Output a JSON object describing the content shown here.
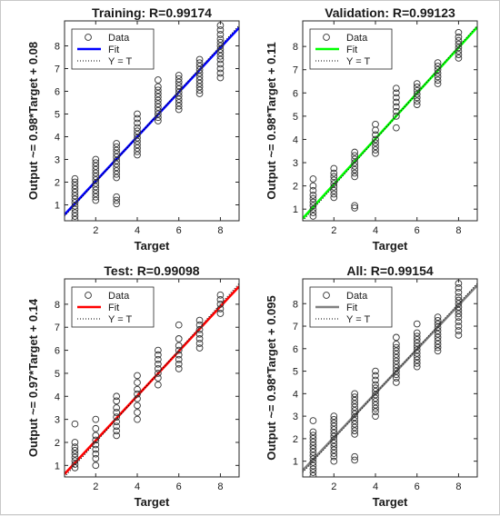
{
  "figure": {
    "background": "#ffffff",
    "window_background": "#f0f0f0"
  },
  "chart_data": [
    {
      "type": "scatter",
      "title": "Training: R=0.99174",
      "xlabel": "Target",
      "ylabel": "Output ~= 0.98*Target + 0.08",
      "xlim": [
        0.5,
        8.9
      ],
      "ylim": [
        0.3,
        9.1
      ],
      "xticks": [
        2,
        4,
        6,
        8
      ],
      "yticks": [
        1,
        2,
        3,
        4,
        5,
        6,
        7,
        8
      ],
      "legend": {
        "placement": "top-left",
        "entries": [
          "Data",
          "Fit",
          "Y = T"
        ]
      },
      "fit": {
        "slope": 0.98,
        "intercept": 0.08,
        "color": "#0000ff"
      },
      "identity_line": true,
      "points": [
        {
          "x": 1,
          "y": [
            0.35,
            0.5,
            0.65,
            0.8,
            0.95,
            1.1,
            1.25,
            1.4,
            1.55,
            1.7,
            1.85,
            2.0,
            2.15
          ]
        },
        {
          "x": 2,
          "y": [
            1.2,
            1.35,
            1.5,
            1.65,
            1.8,
            1.95,
            2.1,
            2.25,
            2.4,
            2.55,
            2.7,
            2.85,
            3.0
          ]
        },
        {
          "x": 3,
          "y": [
            1.05,
            1.2,
            1.35,
            2.2,
            2.35,
            2.5,
            2.65,
            2.8,
            2.95,
            3.1,
            3.25,
            3.4,
            3.55,
            3.7
          ]
        },
        {
          "x": 4,
          "y": [
            3.2,
            3.35,
            3.5,
            3.65,
            3.8,
            3.95,
            4.1,
            4.25,
            4.4,
            4.6,
            4.8,
            5.0
          ]
        },
        {
          "x": 5,
          "y": [
            4.7,
            4.85,
            5.0,
            5.15,
            5.3,
            5.45,
            5.6,
            5.75,
            5.9,
            6.05,
            6.2,
            6.5
          ]
        },
        {
          "x": 6,
          "y": [
            5.2,
            5.35,
            5.5,
            5.65,
            5.8,
            5.95,
            6.1,
            6.25,
            6.4,
            6.55,
            6.7
          ]
        },
        {
          "x": 7,
          "y": [
            5.9,
            6.05,
            6.2,
            6.35,
            6.5,
            6.65,
            6.8,
            6.95,
            7.1,
            7.25,
            7.4
          ]
        },
        {
          "x": 8,
          "y": [
            6.6,
            6.8,
            7.0,
            7.2,
            7.4,
            7.55,
            7.7,
            7.85,
            8.0,
            8.15,
            8.3,
            8.5,
            8.7,
            8.9
          ]
        }
      ]
    },
    {
      "type": "scatter",
      "title": "Validation: R=0.99123",
      "xlabel": "Target",
      "ylabel": "Output ~= 0.98*Target + 0.11",
      "xlim": [
        0.5,
        8.9
      ],
      "ylim": [
        0.5,
        9.1
      ],
      "xticks": [
        2,
        4,
        6,
        8
      ],
      "yticks": [
        1,
        2,
        3,
        4,
        5,
        6,
        7,
        8
      ],
      "legend": {
        "placement": "top-left",
        "entries": [
          "Data",
          "Fit",
          "Y = T"
        ]
      },
      "fit": {
        "slope": 0.98,
        "intercept": 0.11,
        "color": "#00ff00"
      },
      "identity_line": true,
      "points": [
        {
          "x": 1,
          "y": [
            0.7,
            0.85,
            1.0,
            1.15,
            1.3,
            1.45,
            1.6,
            1.8,
            2.0,
            2.3
          ]
        },
        {
          "x": 2,
          "y": [
            1.5,
            1.65,
            1.8,
            1.95,
            2.1,
            2.25,
            2.4,
            2.55,
            2.75
          ]
        },
        {
          "x": 3,
          "y": [
            1.05,
            1.15,
            2.4,
            2.55,
            2.7,
            2.85,
            3.0,
            3.15,
            3.3,
            3.45
          ]
        },
        {
          "x": 4,
          "y": [
            3.4,
            3.55,
            3.7,
            3.85,
            4.0,
            4.2,
            4.4,
            4.65
          ]
        },
        {
          "x": 5,
          "y": [
            4.5,
            5.0,
            5.2,
            5.4,
            5.6,
            5.8,
            6.0,
            6.2
          ]
        },
        {
          "x": 6,
          "y": [
            5.5,
            5.65,
            5.8,
            5.95,
            6.1,
            6.25,
            6.4
          ]
        },
        {
          "x": 7,
          "y": [
            6.4,
            6.55,
            6.7,
            6.85,
            7.0,
            7.15,
            7.3
          ]
        },
        {
          "x": 8,
          "y": [
            7.5,
            7.65,
            7.8,
            7.95,
            8.1,
            8.25,
            8.4,
            8.6
          ]
        }
      ]
    },
    {
      "type": "scatter",
      "title": "Test: R=0.99098",
      "xlabel": "Target",
      "ylabel": "Output ~= 0.97*Target + 0.14",
      "xlim": [
        0.5,
        8.9
      ],
      "ylim": [
        0.5,
        9.1
      ],
      "xticks": [
        2,
        4,
        6,
        8
      ],
      "yticks": [
        1,
        2,
        3,
        4,
        5,
        6,
        7,
        8
      ],
      "legend": {
        "placement": "top-left",
        "entries": [
          "Data",
          "Fit",
          "Y = T"
        ]
      },
      "fit": {
        "slope": 0.97,
        "intercept": 0.14,
        "color": "#ff0000"
      },
      "identity_line": true,
      "points": [
        {
          "x": 1,
          "y": [
            0.9,
            1.05,
            1.2,
            1.35,
            1.5,
            1.65,
            1.8,
            2.0,
            2.8
          ]
        },
        {
          "x": 2,
          "y": [
            1.0,
            1.3,
            1.5,
            1.7,
            1.9,
            2.1,
            2.3,
            2.6,
            3.0
          ]
        },
        {
          "x": 3,
          "y": [
            2.3,
            2.5,
            2.7,
            2.9,
            3.1,
            3.3,
            3.5,
            3.8,
            4.0
          ]
        },
        {
          "x": 4,
          "y": [
            3.0,
            3.3,
            3.6,
            3.9,
            4.1,
            4.3,
            4.6,
            4.9
          ]
        },
        {
          "x": 5,
          "y": [
            4.5,
            4.8,
            5.0,
            5.2,
            5.4,
            5.6,
            5.8,
            6.0
          ]
        },
        {
          "x": 6,
          "y": [
            5.2,
            5.4,
            5.6,
            5.8,
            6.0,
            6.2,
            6.5,
            7.1
          ]
        },
        {
          "x": 7,
          "y": [
            6.1,
            6.3,
            6.5,
            6.7,
            6.9,
            7.1,
            7.3
          ]
        },
        {
          "x": 8,
          "y": [
            7.6,
            7.8,
            8.0,
            8.2,
            8.4
          ]
        }
      ]
    },
    {
      "type": "scatter",
      "title": "All: R=0.99154",
      "xlabel": "Target",
      "ylabel": "Output ~= 0.98*Target + 0.095",
      "xlim": [
        0.5,
        8.9
      ],
      "ylim": [
        0.3,
        9.1
      ],
      "xticks": [
        2,
        4,
        6,
        8
      ],
      "yticks": [
        1,
        2,
        3,
        4,
        5,
        6,
        7,
        8
      ],
      "legend": {
        "placement": "top-left",
        "entries": [
          "Data",
          "Fit",
          "Y = T"
        ]
      },
      "fit": {
        "slope": 0.98,
        "intercept": 0.095,
        "color": "#808080"
      },
      "identity_line": true,
      "points": [
        {
          "x": 1,
          "y": [
            0.35,
            0.5,
            0.65,
            0.8,
            0.95,
            1.1,
            1.25,
            1.4,
            1.55,
            1.7,
            1.85,
            2.0,
            2.15,
            2.3,
            2.8
          ]
        },
        {
          "x": 2,
          "y": [
            1.0,
            1.2,
            1.35,
            1.5,
            1.65,
            1.8,
            1.95,
            2.1,
            2.25,
            2.4,
            2.55,
            2.7,
            2.85,
            3.0
          ]
        },
        {
          "x": 3,
          "y": [
            1.05,
            1.2,
            2.2,
            2.35,
            2.5,
            2.65,
            2.8,
            2.95,
            3.1,
            3.25,
            3.4,
            3.55,
            3.7,
            3.85,
            4.0
          ]
        },
        {
          "x": 4,
          "y": [
            3.0,
            3.2,
            3.35,
            3.5,
            3.65,
            3.8,
            3.95,
            4.1,
            4.25,
            4.4,
            4.6,
            4.8,
            5.0
          ]
        },
        {
          "x": 5,
          "y": [
            4.5,
            4.7,
            4.85,
            5.0,
            5.15,
            5.3,
            5.45,
            5.6,
            5.75,
            5.9,
            6.05,
            6.2,
            6.5
          ]
        },
        {
          "x": 6,
          "y": [
            5.2,
            5.35,
            5.5,
            5.65,
            5.8,
            5.95,
            6.1,
            6.25,
            6.4,
            6.55,
            6.7,
            7.1
          ]
        },
        {
          "x": 7,
          "y": [
            5.9,
            6.05,
            6.2,
            6.35,
            6.5,
            6.65,
            6.8,
            6.95,
            7.1,
            7.25,
            7.4
          ]
        },
        {
          "x": 8,
          "y": [
            6.6,
            6.8,
            7.0,
            7.2,
            7.4,
            7.55,
            7.7,
            7.85,
            8.0,
            8.15,
            8.3,
            8.5,
            8.7,
            8.9
          ]
        }
      ]
    }
  ]
}
